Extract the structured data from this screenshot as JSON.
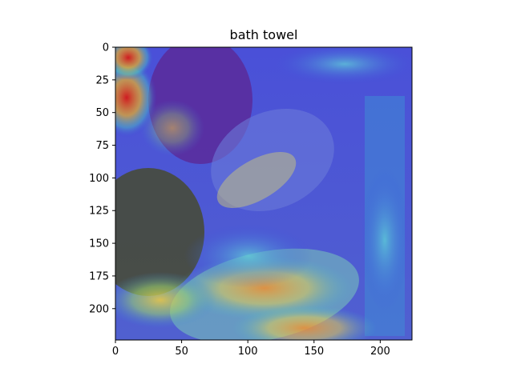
{
  "title": "bath towel",
  "image": {
    "description_colors": {
      "heat_red": "#e3261c",
      "heat_yellow": "#e6d54a",
      "heat_cyan": "#43c8d8",
      "heat_blue": "#3a3ddc",
      "macaron_purple": "#6a2ea0",
      "dark_olive": "#4a4a2a"
    }
  },
  "x_axis": {
    "ticks": [
      "0",
      "50",
      "100",
      "150",
      "200"
    ],
    "tick_values": [
      0,
      50,
      100,
      150,
      200
    ],
    "range": [
      0,
      224
    ]
  },
  "y_axis": {
    "ticks": [
      "0",
      "25",
      "50",
      "75",
      "100",
      "125",
      "150",
      "175",
      "200"
    ],
    "tick_values": [
      0,
      25,
      50,
      75,
      100,
      125,
      150,
      175,
      200
    ],
    "range": [
      0,
      224
    ]
  }
}
